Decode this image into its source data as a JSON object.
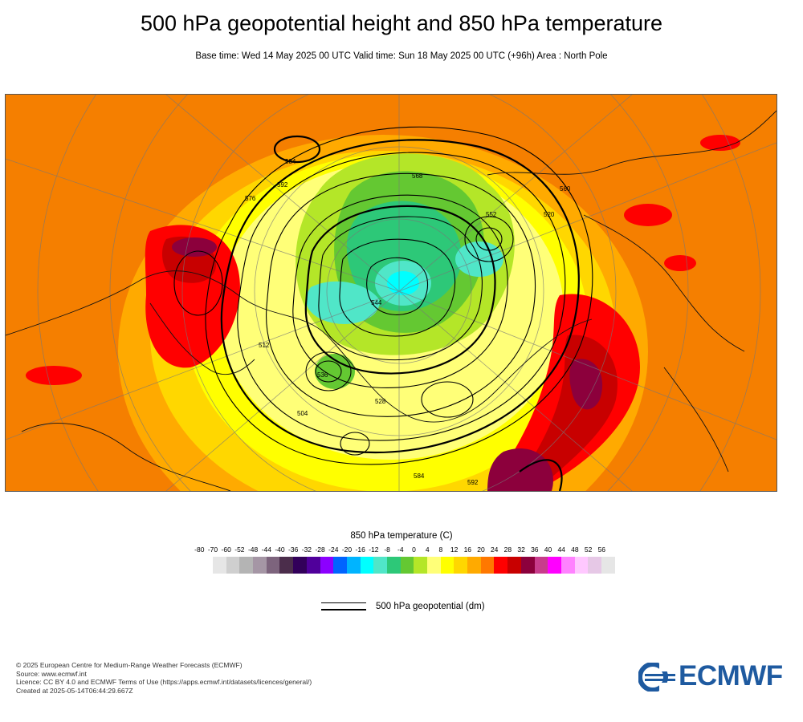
{
  "title": "500 hPa geopotential height and 850 hPa temperature",
  "subtitle": "Base time: Wed 14 May 2025 00 UTC Valid time: Sun 18 May 2025 00 UTC (+96h) Area : North Pole",
  "map": {
    "projection": "polar stereographic",
    "contour_labels": [
      "584",
      "592",
      "576",
      "568",
      "552",
      "544",
      "536",
      "528",
      "520",
      "512",
      "504",
      "560",
      "584",
      "592"
    ]
  },
  "legend": {
    "title": "850 hPa temperature (C)",
    "ticks": [
      "-80",
      "-70",
      "-60",
      "-52",
      "-48",
      "-44",
      "-40",
      "-36",
      "-32",
      "-28",
      "-24",
      "-20",
      "-16",
      "-12",
      "-8",
      "-4",
      "0",
      "4",
      "8",
      "12",
      "16",
      "20",
      "24",
      "28",
      "32",
      "36",
      "40",
      "44",
      "48",
      "52",
      "56"
    ],
    "colors": [
      "#e6e6e6",
      "#cfcfcf",
      "#b4b4b4",
      "#a596a5",
      "#7d647d",
      "#4b2d4b",
      "#32005a",
      "#50009b",
      "#8c00ff",
      "#0064ff",
      "#00b4ff",
      "#00ffff",
      "#50e6c8",
      "#2dc878",
      "#64c832",
      "#b4e628",
      "#ffff78",
      "#ffff00",
      "#ffd700",
      "#ffaa00",
      "#ff7800",
      "#ff0000",
      "#c80000",
      "#8c003c",
      "#c83c8c",
      "#ff00ff",
      "#ff82ff",
      "#ffc8ff",
      "#e6c8e6",
      "#e6e6e6"
    ]
  },
  "line_legend": {
    "label": "500 hPa geopotential (dm)"
  },
  "footer": {
    "line1": "© 2025 European Centre for Medium-Range Weather Forecasts (ECMWF)",
    "line2": "Source: www.ecmwf.int",
    "line3": "Licence: CC BY 4.0 and ECMWF Terms of Use (https://apps.ecmwf.int/datasets/licences/general/)",
    "line4": "Created at 2025-05-14T06:44:29.667Z"
  },
  "logo": {
    "text": "ECMWF",
    "color": "#1e5aa0"
  }
}
